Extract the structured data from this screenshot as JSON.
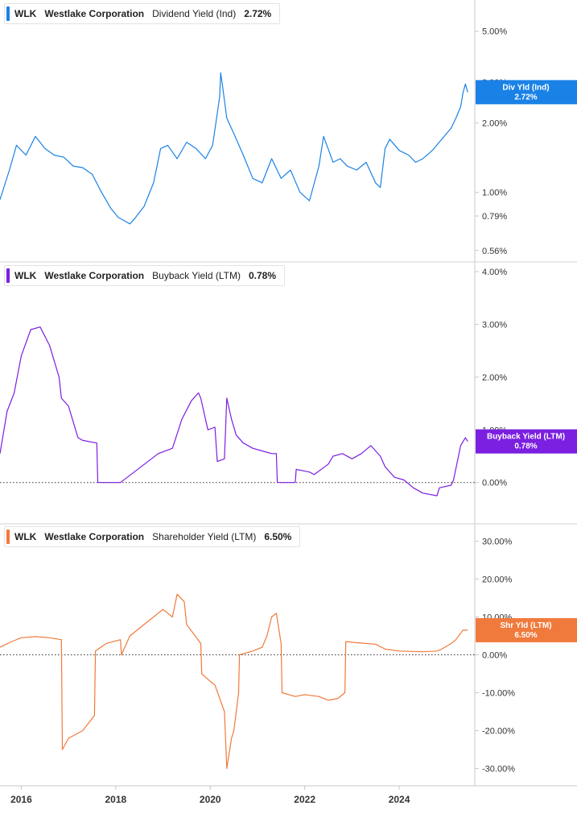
{
  "chart_data": [
    {
      "type": "line",
      "ticker": "WLK",
      "company": "Westlake Corporation",
      "metric": "Dividend Yield (Ind)",
      "last_value_label": "2.72%",
      "tag_label": "Div Yld (Ind)",
      "color": "#1a82e6",
      "y_scale": "log",
      "ylim": [
        0.55,
        6.2
      ],
      "yticks": [
        0.56,
        0.79,
        1.0,
        2.0,
        3.0,
        5.0
      ],
      "ytick_labels": [
        "0.56%",
        "0.79%",
        "1.00%",
        "2.00%",
        "3.00%",
        "5.00%"
      ],
      "x": [
        2015.55,
        2015.75,
        2015.9,
        2016.1,
        2016.3,
        2016.5,
        2016.7,
        2016.9,
        2017.1,
        2017.3,
        2017.5,
        2017.7,
        2017.9,
        2018.05,
        2018.2,
        2018.3,
        2018.4,
        2018.6,
        2018.8,
        2018.95,
        2019.1,
        2019.3,
        2019.5,
        2019.7,
        2019.9,
        2020.05,
        2020.2,
        2020.22,
        2020.26,
        2020.35,
        2020.5,
        2020.7,
        2020.9,
        2021.1,
        2021.3,
        2021.5,
        2021.7,
        2021.9,
        2022.1,
        2022.3,
        2022.4,
        2022.6,
        2022.75,
        2022.9,
        2023.1,
        2023.3,
        2023.5,
        2023.6,
        2023.7,
        2023.8,
        2024.0,
        2024.2,
        2024.35,
        2024.5,
        2024.7,
        2024.9,
        2025.1,
        2025.2,
        2025.3,
        2025.35,
        2025.4,
        2025.45
      ],
      "values": [
        0.93,
        1.25,
        1.6,
        1.45,
        1.75,
        1.55,
        1.45,
        1.42,
        1.3,
        1.28,
        1.2,
        1.0,
        0.85,
        0.78,
        0.75,
        0.73,
        0.77,
        0.87,
        1.1,
        1.55,
        1.6,
        1.4,
        1.65,
        1.55,
        1.4,
        1.6,
        2.6,
        3.3,
        2.9,
        2.1,
        1.8,
        1.45,
        1.15,
        1.1,
        1.4,
        1.15,
        1.25,
        1.0,
        0.92,
        1.3,
        1.75,
        1.35,
        1.4,
        1.3,
        1.25,
        1.35,
        1.1,
        1.05,
        1.55,
        1.7,
        1.52,
        1.45,
        1.35,
        1.4,
        1.52,
        1.7,
        1.9,
        2.1,
        2.35,
        2.7,
        2.95,
        2.72
      ]
    },
    {
      "type": "line",
      "ticker": "WLK",
      "company": "Westlake Corporation",
      "metric": "Buyback Yield (LTM)",
      "last_value_label": "0.78%",
      "tag_label": "Buyback Yield (LTM)",
      "color": "#7b1fe0",
      "ylim": [
        -0.6,
        4.0
      ],
      "yticks": [
        0.0,
        1.0,
        2.0,
        3.0,
        4.0
      ],
      "ytick_labels": [
        "0.00%",
        "1.00%",
        "2.00%",
        "3.00%",
        "4.00%"
      ],
      "x": [
        2015.55,
        2015.7,
        2015.85,
        2016.0,
        2016.2,
        2016.4,
        2016.6,
        2016.8,
        2016.85,
        2017.0,
        2017.2,
        2017.3,
        2017.6,
        2017.62,
        2018.1,
        2018.9,
        2019.2,
        2019.4,
        2019.6,
        2019.75,
        2019.8,
        2019.95,
        2020.1,
        2020.15,
        2020.3,
        2020.35,
        2020.45,
        2020.55,
        2020.7,
        2020.9,
        2021.1,
        2021.3,
        2021.4,
        2021.42,
        2021.8,
        2021.82,
        2022.1,
        2022.2,
        2022.5,
        2022.6,
        2022.8,
        2023.0,
        2023.2,
        2023.4,
        2023.6,
        2023.7,
        2023.9,
        2024.1,
        2024.3,
        2024.5,
        2024.8,
        2024.85,
        2025.1,
        2025.15,
        2025.3,
        2025.4,
        2025.45
      ],
      "values": [
        0.55,
        1.35,
        1.7,
        2.4,
        2.9,
        2.95,
        2.6,
        2.0,
        1.6,
        1.45,
        0.85,
        0.8,
        0.75,
        0.0,
        0.0,
        0.55,
        0.65,
        1.2,
        1.55,
        1.7,
        1.6,
        1.0,
        1.05,
        0.4,
        0.45,
        1.6,
        1.2,
        0.9,
        0.75,
        0.65,
        0.6,
        0.55,
        0.55,
        0.0,
        0.0,
        0.25,
        0.2,
        0.15,
        0.35,
        0.5,
        0.55,
        0.45,
        0.55,
        0.7,
        0.5,
        0.3,
        0.1,
        0.05,
        -0.1,
        -0.2,
        -0.25,
        -0.1,
        -0.05,
        0.05,
        0.7,
        0.85,
        0.78
      ]
    },
    {
      "type": "line",
      "ticker": "WLK",
      "company": "Westlake Corporation",
      "metric": "Shareholder Yield (LTM)",
      "last_value_label": "6.50%",
      "tag_label": "Shr Yld (LTM)",
      "color": "#f07a3c",
      "ylim": [
        -32,
        32
      ],
      "yticks": [
        -30,
        -20,
        -10,
        0,
        10,
        20,
        30
      ],
      "ytick_labels": [
        "-30.00%",
        "-20.00%",
        "-10.00%",
        "0.00%",
        "10.00%",
        "20.00%",
        "30.00%"
      ],
      "x": [
        2015.55,
        2015.8,
        2016.0,
        2016.3,
        2016.6,
        2016.85,
        2016.87,
        2017.0,
        2017.3,
        2017.55,
        2017.57,
        2017.8,
        2018.1,
        2018.12,
        2018.3,
        2018.6,
        2018.8,
        2019.0,
        2019.2,
        2019.3,
        2019.45,
        2019.5,
        2019.8,
        2019.82,
        2020.0,
        2020.1,
        2020.3,
        2020.35,
        2020.45,
        2020.5,
        2020.6,
        2020.62,
        2020.9,
        2021.1,
        2021.2,
        2021.3,
        2021.4,
        2021.5,
        2021.52,
        2021.8,
        2022.0,
        2022.3,
        2022.5,
        2022.7,
        2022.85,
        2022.87,
        2023.1,
        2023.3,
        2023.5,
        2023.7,
        2024.0,
        2024.5,
        2024.8,
        2024.9,
        2025.1,
        2025.2,
        2025.35,
        2025.45
      ],
      "values": [
        2.0,
        3.5,
        4.5,
        4.8,
        4.5,
        4.0,
        -25.0,
        -22.0,
        -20.0,
        -16.0,
        1.0,
        3.0,
        4.0,
        0.0,
        5.0,
        8.0,
        10.0,
        12.0,
        10.0,
        16.0,
        14.0,
        8.0,
        3.0,
        -5.0,
        -7.0,
        -8.0,
        -15.0,
        -30.0,
        -22.0,
        -20.0,
        -10.0,
        0.0,
        1.0,
        2.0,
        5.0,
        10.0,
        11.0,
        3.0,
        -10.0,
        -11.0,
        -10.5,
        -11.0,
        -12.0,
        -11.5,
        -10.0,
        3.5,
        3.2,
        3.0,
        2.8,
        1.5,
        1.0,
        0.8,
        1.0,
        1.5,
        3.0,
        4.0,
        6.5,
        6.5
      ]
    }
  ],
  "x_axis": {
    "xlim": [
      2015.55,
      2025.6
    ],
    "ticks": [
      2016,
      2018,
      2020,
      2022,
      2024
    ],
    "tick_labels": [
      "2016",
      "2018",
      "2020",
      "2022",
      "2024"
    ]
  }
}
